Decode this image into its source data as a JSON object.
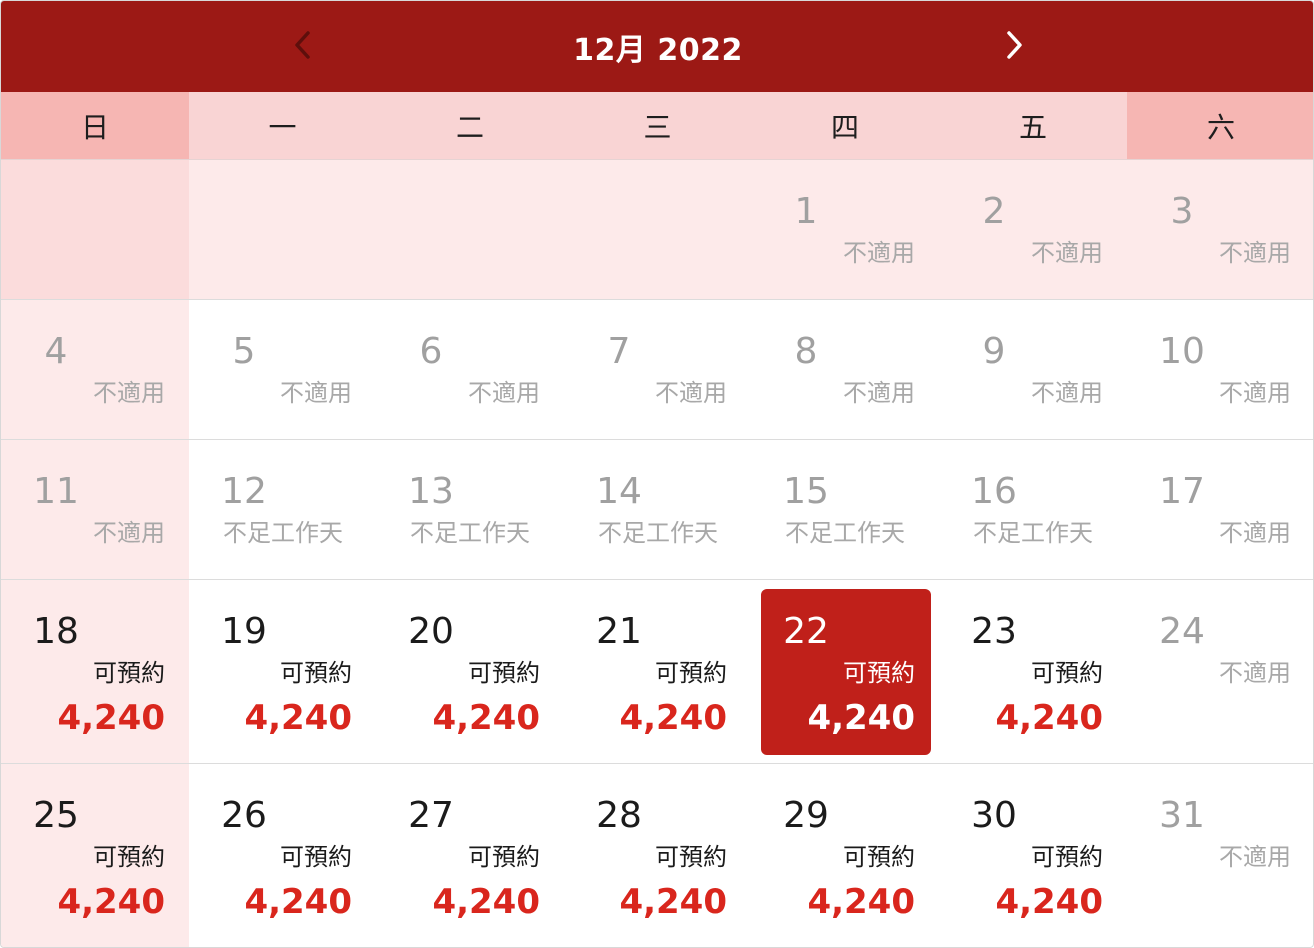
{
  "header": {
    "title": "12月 2022",
    "prev_icon": "chevron-left-icon",
    "next_icon": "chevron-right-icon"
  },
  "weekdays": [
    "日",
    "一",
    "二",
    "三",
    "四",
    "五",
    "六"
  ],
  "colors": {
    "header_bg": "#9c1915",
    "weekday_bg": "#f9d4d4",
    "weekend_header_bg": "#f6b6b3",
    "sunday_bg": "#fdeaea",
    "price": "#d9261d",
    "selected_bg": "#c0201a",
    "unavailable_text": "#a0a0a0"
  },
  "selected_day": 22,
  "weeks": [
    [
      null,
      null,
      null,
      null,
      {
        "day": "1",
        "status": "不適用",
        "available": false
      },
      {
        "day": "2",
        "status": "不適用",
        "available": false
      },
      {
        "day": "3",
        "status": "不適用",
        "available": false
      }
    ],
    [
      {
        "day": "4",
        "status": "不適用",
        "available": false
      },
      {
        "day": "5",
        "status": "不適用",
        "available": false
      },
      {
        "day": "6",
        "status": "不適用",
        "available": false
      },
      {
        "day": "7",
        "status": "不適用",
        "available": false
      },
      {
        "day": "8",
        "status": "不適用",
        "available": false
      },
      {
        "day": "9",
        "status": "不適用",
        "available": false
      },
      {
        "day": "10",
        "status": "不適用",
        "available": false
      }
    ],
    [
      {
        "day": "11",
        "status": "不適用",
        "available": false
      },
      {
        "day": "12",
        "status": "不足工作天",
        "available": false
      },
      {
        "day": "13",
        "status": "不足工作天",
        "available": false
      },
      {
        "day": "14",
        "status": "不足工作天",
        "available": false
      },
      {
        "day": "15",
        "status": "不足工作天",
        "available": false
      },
      {
        "day": "16",
        "status": "不足工作天",
        "available": false
      },
      {
        "day": "17",
        "status": "不適用",
        "available": false
      }
    ],
    [
      {
        "day": "18",
        "status": "可預約",
        "price": "4,240",
        "available": true
      },
      {
        "day": "19",
        "status": "可預約",
        "price": "4,240",
        "available": true
      },
      {
        "day": "20",
        "status": "可預約",
        "price": "4,240",
        "available": true
      },
      {
        "day": "21",
        "status": "可預約",
        "price": "4,240",
        "available": true
      },
      {
        "day": "22",
        "status": "可預約",
        "price": "4,240",
        "available": true
      },
      {
        "day": "23",
        "status": "可預約",
        "price": "4,240",
        "available": true
      },
      {
        "day": "24",
        "status": "不適用",
        "available": false
      }
    ],
    [
      {
        "day": "25",
        "status": "可預約",
        "price": "4,240",
        "available": true
      },
      {
        "day": "26",
        "status": "可預約",
        "price": "4,240",
        "available": true
      },
      {
        "day": "27",
        "status": "可預約",
        "price": "4,240",
        "available": true
      },
      {
        "day": "28",
        "status": "可預約",
        "price": "4,240",
        "available": true
      },
      {
        "day": "29",
        "status": "可預約",
        "price": "4,240",
        "available": true
      },
      {
        "day": "30",
        "status": "可預約",
        "price": "4,240",
        "available": true
      },
      {
        "day": "31",
        "status": "不適用",
        "available": false
      }
    ]
  ]
}
